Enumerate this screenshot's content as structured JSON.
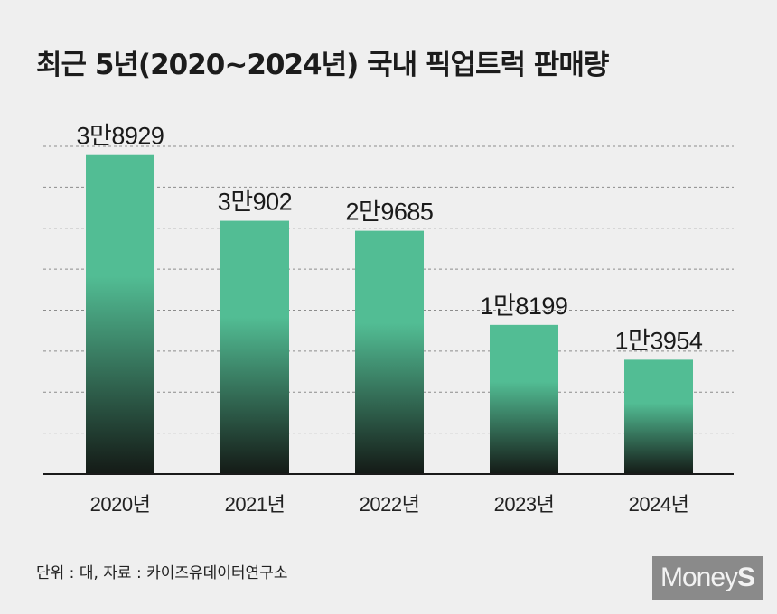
{
  "title": "최근 5년(2020~2024년) 국내 픽업트럭 판매량",
  "source": "단위 : 대, 자료 : 카이즈유데이터연구소",
  "logo": {
    "text_main": "Money",
    "text_accent": "S"
  },
  "colors": {
    "bar_top": "#52bd94",
    "bar_bottom": "#141a16",
    "grid": "#8c8c8c",
    "axis": "#1a1a1a",
    "background": "#efefef"
  },
  "chart_data": {
    "type": "bar",
    "title": "최근 5년(2020~2024년) 국내 픽업트럭 판매량",
    "categories": [
      "2020년",
      "2021년",
      "2022년",
      "2023년",
      "2024년"
    ],
    "values": [
      38929,
      30902,
      29685,
      18199,
      13954
    ],
    "data_labels": [
      "3만8929",
      "3만902",
      "2만9685",
      "1만8199",
      "1만3954"
    ],
    "ylim": [
      0,
      40000
    ],
    "grid": true,
    "legend": "none",
    "unit": "대"
  }
}
